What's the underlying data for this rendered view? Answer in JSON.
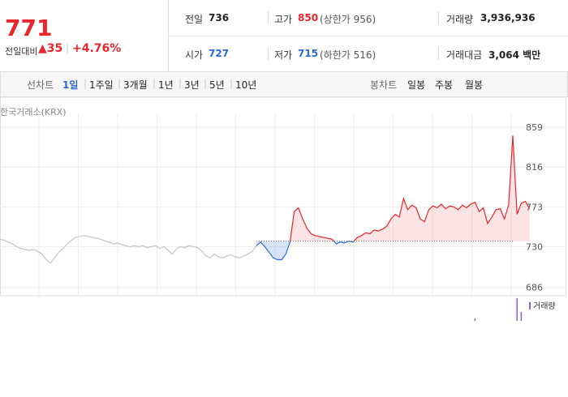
{
  "header": {
    "price": "771",
    "change_label": "전일대비",
    "change": "▲35",
    "change_pct": "+4.76%",
    "prev_close": {
      "label": "전일",
      "value": 736
    },
    "open": {
      "label": "시가",
      "value": 727
    },
    "high": {
      "label": "고가",
      "value": 850,
      "note": "(상한가 956)"
    },
    "low": {
      "label": "저가",
      "value": 715,
      "note": "(하한가 516)"
    },
    "volume": {
      "label": "거래량",
      "value": "3,936,936"
    },
    "amount": {
      "label": "거래대금",
      "value": "3,064 백만"
    }
  },
  "tabs": {
    "line_label": "선차트",
    "line": [
      "1일",
      "1주일",
      "3개월",
      "1년",
      "3년",
      "5년",
      "10년"
    ],
    "candle_label": "봉차트",
    "candle": [
      "일봉",
      "주봉",
      "월봉"
    ]
  },
  "chart_data": {
    "type": "line",
    "source": "한국거래소(KRX)",
    "ylim": [
      677,
      874
    ],
    "yticks": [
      859,
      816,
      773,
      730,
      686
    ],
    "grid": true,
    "series": [
      {
        "color": "#c4c4c4",
        "values": [
          738,
          737,
          735,
          733,
          730,
          728,
          727,
          726,
          727,
          725,
          722,
          716,
          712,
          718,
          724,
          728,
          733,
          737,
          740,
          741,
          742,
          741,
          740,
          739,
          738,
          736,
          735,
          733,
          734,
          732,
          731,
          730,
          731,
          730,
          731,
          729,
          730,
          731,
          728,
          730,
          726,
          722,
          728,
          730,
          729,
          731,
          730,
          729,
          725,
          720,
          718,
          722,
          719,
          718,
          720,
          721,
          719,
          718,
          720,
          722,
          725,
          731,
          null,
          null,
          null,
          null,
          null,
          null,
          null,
          null,
          null,
          null,
          null,
          null,
          null,
          null,
          null,
          null,
          null,
          null,
          null,
          null,
          null,
          null,
          null,
          null,
          null,
          null,
          null,
          null,
          null,
          null,
          null,
          null,
          null,
          null,
          null,
          null,
          null,
          null,
          null,
          null,
          null,
          null,
          null,
          null,
          null,
          null,
          null,
          null,
          null,
          null,
          null,
          null,
          null,
          null,
          null,
          null,
          null,
          null,
          null,
          null,
          null
        ]
      },
      {
        "color": "#e8262d",
        "color_down": "#2a6ad2",
        "values": [
          null,
          null,
          null,
          null,
          null,
          null,
          null,
          null,
          null,
          null,
          null,
          null,
          null,
          null,
          null,
          null,
          null,
          null,
          null,
          null,
          null,
          null,
          null,
          null,
          null,
          null,
          null,
          null,
          null,
          null,
          null,
          null,
          null,
          null,
          null,
          null,
          null,
          null,
          null,
          null,
          null,
          null,
          null,
          null,
          null,
          null,
          null,
          null,
          null,
          null,
          null,
          null,
          null,
          null,
          null,
          null,
          null,
          null,
          null,
          null,
          null,
          731,
          735,
          730,
          724,
          718,
          716,
          716,
          722,
          735,
          768,
          772,
          760,
          750,
          744,
          742,
          741,
          740,
          739,
          738,
          733,
          735,
          734,
          736,
          735,
          740,
          742,
          745,
          744,
          748,
          747,
          749,
          752,
          760,
          765,
          762,
          782,
          770,
          775,
          772,
          760,
          757,
          770,
          774,
          772,
          776,
          771,
          774,
          773,
          770,
          775,
          772,
          776,
          778,
          768,
          772,
          755,
          762,
          770,
          771,
          760,
          775,
          850,
          765,
          777,
          779,
          771
        ]
      }
    ],
    "volume": {
      "name": "거래량",
      "color": "#8a5fd0",
      "x": [
        113,
        123,
        124
      ],
      "values": [
        3,
        30,
        12
      ],
      "ylim": [
        0,
        30
      ]
    }
  }
}
